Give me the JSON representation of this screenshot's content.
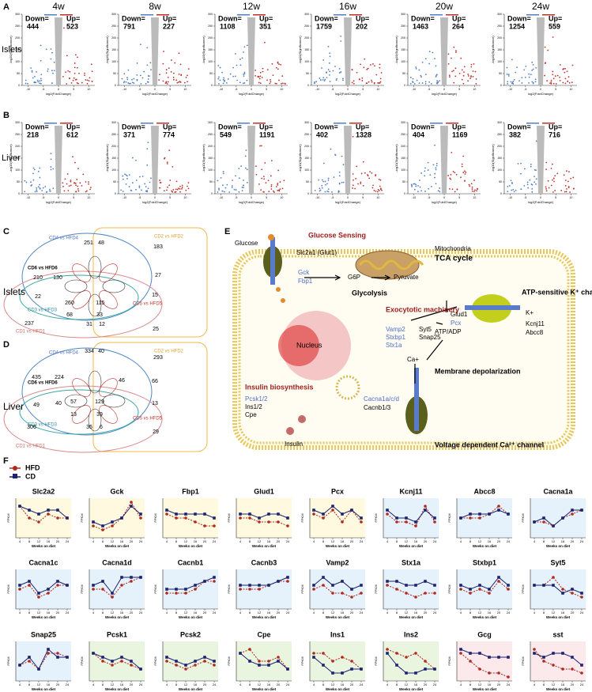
{
  "panels": {
    "a": "A",
    "b": "B",
    "c": "C",
    "d": "D",
    "e": "E",
    "f": "F"
  },
  "volcano": {
    "timepoints": [
      "4w",
      "8w",
      "12w",
      "16w",
      "20w",
      "24w"
    ],
    "down_label": "Down=",
    "up_label": "Up=",
    "y_label": "-log10(Significance)",
    "x_label": "log2(FoldChange)",
    "yticks": [
      0,
      50,
      100,
      150,
      200,
      250,
      300
    ],
    "xticks": [
      -10,
      -5,
      0,
      5,
      10
    ],
    "ylim": [
      0,
      300
    ],
    "xlim": [
      -12,
      12
    ],
    "tissues": [
      {
        "label": "Islets",
        "down": [
          444,
          791,
          1108,
          1759,
          1463,
          1254
        ],
        "up": [
          523,
          227,
          351,
          202,
          264,
          559
        ]
      },
      {
        "label": "Liver",
        "down": [
          218,
          371,
          549,
          402,
          404,
          382
        ],
        "up": [
          612,
          774,
          1191,
          1328,
          1169,
          716
        ]
      }
    ]
  },
  "venn": [
    {
      "label": "Islets",
      "sets": [
        "CD4 vs HFD4",
        "CD2 vs HFD2",
        "CD6 vs HFD6",
        "CD5 vs HFD5",
        "CD3 vs HFD3",
        "CD1 vs HFD1"
      ],
      "counts": [
        251,
        48,
        183,
        210,
        130,
        27,
        260,
        115,
        22,
        68,
        33,
        15,
        237,
        31,
        12,
        25
      ]
    },
    {
      "label": "Liver",
      "sets": [
        "CD4 vs HFD4",
        "CD2 vs HFD2",
        "CD6 vs HFD6",
        "CD5 vs HFD5",
        "CD3 vs HFD3",
        "CD1 vs HFD1"
      ],
      "counts": [
        334,
        40,
        293,
        435,
        224,
        66,
        57,
        129,
        49,
        40,
        13,
        13,
        39,
        46,
        306,
        36,
        6,
        29
      ]
    }
  ],
  "pathway": {
    "glucose": "Glucose",
    "glucose_sensing": "Glucose Sensing",
    "glut": "Slc2a1 (Glut1)",
    "gck": "Gck",
    "fbp1": "Fbp1",
    "g6p": "G6P",
    "pyruvate": "Pyruvate",
    "mitochondria": "Mitochondria",
    "tca": "TCA cycle",
    "glycolysis": "Glycolysis",
    "glud1": "Glud1",
    "pcx": "Pcx",
    "nucleus": "Nucleus",
    "exocytotic": "Exocytotic machinery",
    "vamp2": "Vamp2",
    "stxbp1": "Stxbp1",
    "stx1a": "Stx1a",
    "syt5": "Syt5",
    "snap25": "Snap25",
    "atp": "ATP/ADP",
    "katp": "ATP-sensitive K⁺ channel",
    "k": "K+",
    "kcnj11": "Kcnj11",
    "abcc8": "Abcc8",
    "insulin_bio": "Insulin biosynthesis",
    "pcsk": "Pcsk1/2",
    "ins": "Ins1/2",
    "cpe": "Cpe",
    "cacna": "Cacna1a/c/d",
    "cacnb": "Cacnb1/3",
    "ca": "Ca+",
    "depol": "Membrane depolarization",
    "insulin": "Insulin",
    "vdcc": "Voltage dependent Ca²⁺ channel"
  },
  "timecourse": {
    "series": [
      {
        "name": "HFD",
        "color": "#b0281e"
      },
      {
        "name": "CD",
        "color": "#1c2270"
      }
    ],
    "x_label": "Weeks on diet",
    "y_label": "FPKM",
    "xticks": [
      4,
      8,
      12,
      16,
      20,
      24
    ],
    "ylim": [
      0,
      10
    ],
    "genes": [
      {
        "name": "Slc2a2",
        "hfd": [
          8,
          5,
          4,
          6,
          5,
          5
        ],
        "cd": [
          8,
          7,
          6,
          7,
          7,
          5
        ]
      },
      {
        "name": "Gck",
        "hfd": [
          3,
          2,
          3,
          5,
          9,
          5
        ],
        "cd": [
          4,
          3,
          4,
          5,
          8,
          6
        ]
      },
      {
        "name": "Fbp1",
        "hfd": [
          6,
          5,
          5,
          4,
          3,
          3
        ],
        "cd": [
          7,
          6,
          6,
          6,
          6,
          5
        ]
      },
      {
        "name": "Glud1",
        "hfd": [
          5,
          5,
          4,
          4,
          4,
          3
        ],
        "cd": [
          6,
          6,
          5,
          6,
          6,
          5
        ]
      },
      {
        "name": "Pcx",
        "hfd": [
          6,
          5,
          7,
          4,
          7,
          4
        ],
        "cd": [
          7,
          6,
          8,
          6,
          7,
          5
        ]
      },
      {
        "name": "Kcnj11",
        "hfd": [
          6,
          4,
          4,
          3,
          8,
          4
        ],
        "cd": [
          7,
          5,
          5,
          4,
          7,
          5
        ]
      },
      {
        "name": "Abcc8",
        "hfd": [
          5,
          5,
          5,
          6,
          8,
          6
        ],
        "cd": [
          5,
          6,
          6,
          6,
          7,
          6
        ]
      },
      {
        "name": "Cacna1a",
        "hfd": [
          4,
          4,
          3,
          5,
          6,
          7
        ],
        "cd": [
          4,
          5,
          3,
          5,
          7,
          7
        ]
      },
      {
        "name": "Cacna1c",
        "hfd": [
          5,
          6,
          3,
          4,
          6,
          6
        ],
        "cd": [
          6,
          7,
          4,
          5,
          7,
          6
        ]
      },
      {
        "name": "Cacna1d",
        "hfd": [
          5,
          5,
          3,
          6,
          7,
          8
        ],
        "cd": [
          6,
          7,
          4,
          8,
          8,
          8
        ]
      },
      {
        "name": "Cacnb1",
        "hfd": [
          4,
          4,
          4,
          5,
          7,
          7
        ],
        "cd": [
          5,
          5,
          5,
          6,
          7,
          8
        ]
      },
      {
        "name": "Cacnb3",
        "hfd": [
          5,
          5,
          5,
          6,
          7,
          7
        ],
        "cd": [
          6,
          6,
          6,
          6,
          7,
          8
        ]
      },
      {
        "name": "Vamp2",
        "hfd": [
          5,
          6,
          4,
          4,
          3,
          4
        ],
        "cd": [
          6,
          8,
          6,
          7,
          5,
          6
        ]
      },
      {
        "name": "Stx1a",
        "hfd": [
          6,
          5,
          4,
          3,
          4,
          4
        ],
        "cd": [
          7,
          7,
          6,
          6,
          7,
          6
        ]
      },
      {
        "name": "Stxbp1",
        "hfd": [
          5,
          4,
          5,
          4,
          7,
          5
        ],
        "cd": [
          6,
          5,
          6,
          5,
          8,
          6
        ]
      },
      {
        "name": "Syt5",
        "hfd": [
          6,
          6,
          8,
          5,
          4,
          3
        ],
        "cd": [
          6,
          6,
          6,
          4,
          5,
          4
        ]
      },
      {
        "name": "Snap25",
        "hfd": [
          4,
          5,
          3,
          7,
          7,
          6
        ],
        "cd": [
          4,
          6,
          3,
          8,
          6,
          6
        ]
      },
      {
        "name": "Pcsk1",
        "hfd": [
          7,
          5,
          4,
          5,
          4,
          3
        ],
        "cd": [
          7,
          6,
          5,
          6,
          5,
          3
        ]
      },
      {
        "name": "Pcsk2",
        "hfd": [
          5,
          4,
          3,
          4,
          5,
          4
        ],
        "cd": [
          6,
          5,
          4,
          5,
          6,
          5
        ]
      },
      {
        "name": "Cpe",
        "hfd": [
          7,
          8,
          5,
          5,
          6,
          3
        ],
        "cd": [
          7,
          5,
          4,
          4,
          5,
          3
        ]
      },
      {
        "name": "Ins1",
        "hfd": [
          7,
          7,
          5,
          6,
          5,
          3
        ],
        "cd": [
          6,
          4,
          2,
          2,
          3,
          3
        ]
      },
      {
        "name": "Ins2",
        "hfd": [
          8,
          7,
          6,
          7,
          5,
          3
        ],
        "cd": [
          7,
          4,
          2,
          2,
          3,
          3
        ]
      },
      {
        "name": "Gcg",
        "hfd": [
          7,
          5,
          3,
          2,
          2,
          1
        ],
        "cd": [
          8,
          7,
          7,
          6,
          6,
          6
        ]
      },
      {
        "name": "sst",
        "hfd": [
          8,
          5,
          4,
          3,
          3,
          2
        ],
        "cd": [
          7,
          6,
          7,
          7,
          6,
          4
        ]
      }
    ]
  }
}
